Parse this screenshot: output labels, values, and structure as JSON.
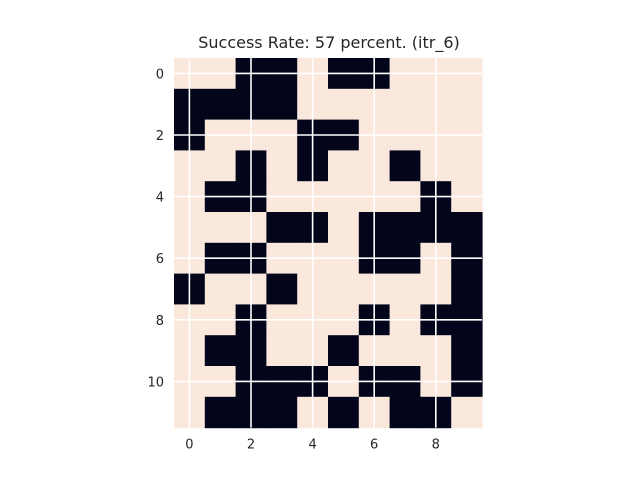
{
  "chart_data": {
    "type": "heatmap",
    "title": "Success Rate: 57 percent. (itr_6)",
    "xlabel": "",
    "ylabel": "",
    "rows": 12,
    "cols": 10,
    "x_ticks": [
      0,
      2,
      4,
      6,
      8
    ],
    "y_ticks": [
      0,
      2,
      4,
      6,
      8,
      10
    ],
    "grid": true,
    "colors": {
      "value_0": "#fae8dc",
      "value_1": "#03051a",
      "grid": "#ffffff",
      "text": "#262626"
    },
    "values": [
      [
        0,
        0,
        1,
        1,
        0,
        1,
        1,
        0,
        0,
        0
      ],
      [
        1,
        1,
        1,
        1,
        0,
        0,
        0,
        0,
        0,
        0
      ],
      [
        1,
        0,
        0,
        0,
        1,
        1,
        0,
        0,
        0,
        0
      ],
      [
        0,
        0,
        1,
        0,
        1,
        0,
        0,
        1,
        0,
        0
      ],
      [
        0,
        1,
        1,
        0,
        0,
        0,
        0,
        0,
        1,
        0
      ],
      [
        0,
        0,
        0,
        1,
        1,
        0,
        1,
        1,
        1,
        1
      ],
      [
        0,
        1,
        1,
        0,
        0,
        0,
        1,
        1,
        0,
        1
      ],
      [
        1,
        0,
        0,
        1,
        0,
        0,
        0,
        0,
        0,
        1
      ],
      [
        0,
        0,
        1,
        0,
        0,
        0,
        1,
        0,
        1,
        1
      ],
      [
        0,
        1,
        1,
        0,
        0,
        1,
        0,
        0,
        0,
        1
      ],
      [
        0,
        0,
        1,
        1,
        1,
        0,
        1,
        1,
        0,
        1
      ],
      [
        0,
        1,
        1,
        1,
        0,
        1,
        0,
        1,
        1,
        0
      ]
    ]
  }
}
